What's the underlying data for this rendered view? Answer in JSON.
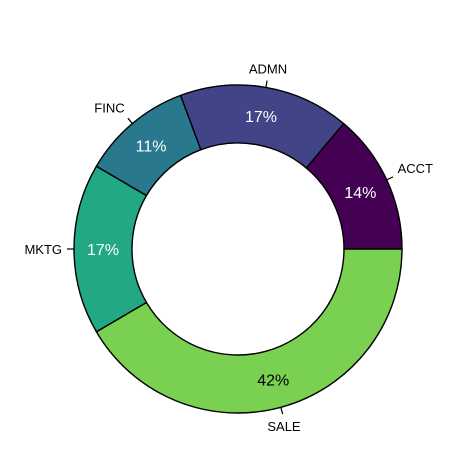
{
  "chart_data": {
    "type": "pie",
    "style": "donut",
    "categories": [
      "ACCT",
      "SALE",
      "MKTG",
      "FINC",
      "ADMN"
    ],
    "values": [
      14,
      42,
      17,
      11,
      17
    ],
    "value_labels": [
      "14%",
      "42%",
      "17%",
      "11%",
      "17%"
    ],
    "colors": [
      "#440154",
      "#7ad151",
      "#22a884",
      "#2a788e",
      "#414487"
    ],
    "label_text_colors": [
      "#ffffff",
      "#000000",
      "#ffffff",
      "#ffffff",
      "#ffffff"
    ]
  }
}
